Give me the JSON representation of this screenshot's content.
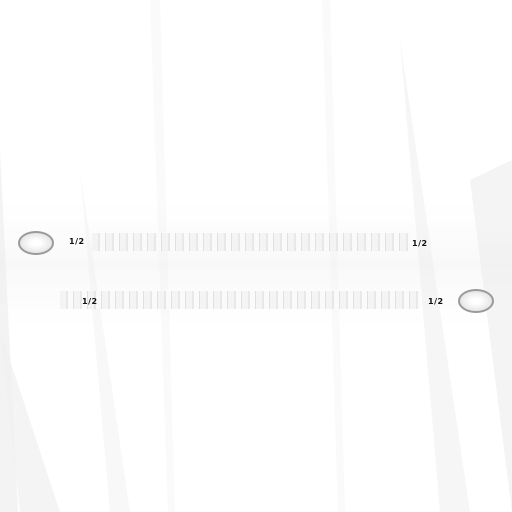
{
  "dimension_top": {
    "left_fraction": "1/2",
    "right_fraction": "1/2"
  },
  "dimension_bottom": {
    "left_fraction": "1/2",
    "right_fraction": "1/2"
  },
  "colors": {
    "background": "#ffffff",
    "ring_stroke": "#9a9a9a",
    "label_text": "#111111"
  }
}
